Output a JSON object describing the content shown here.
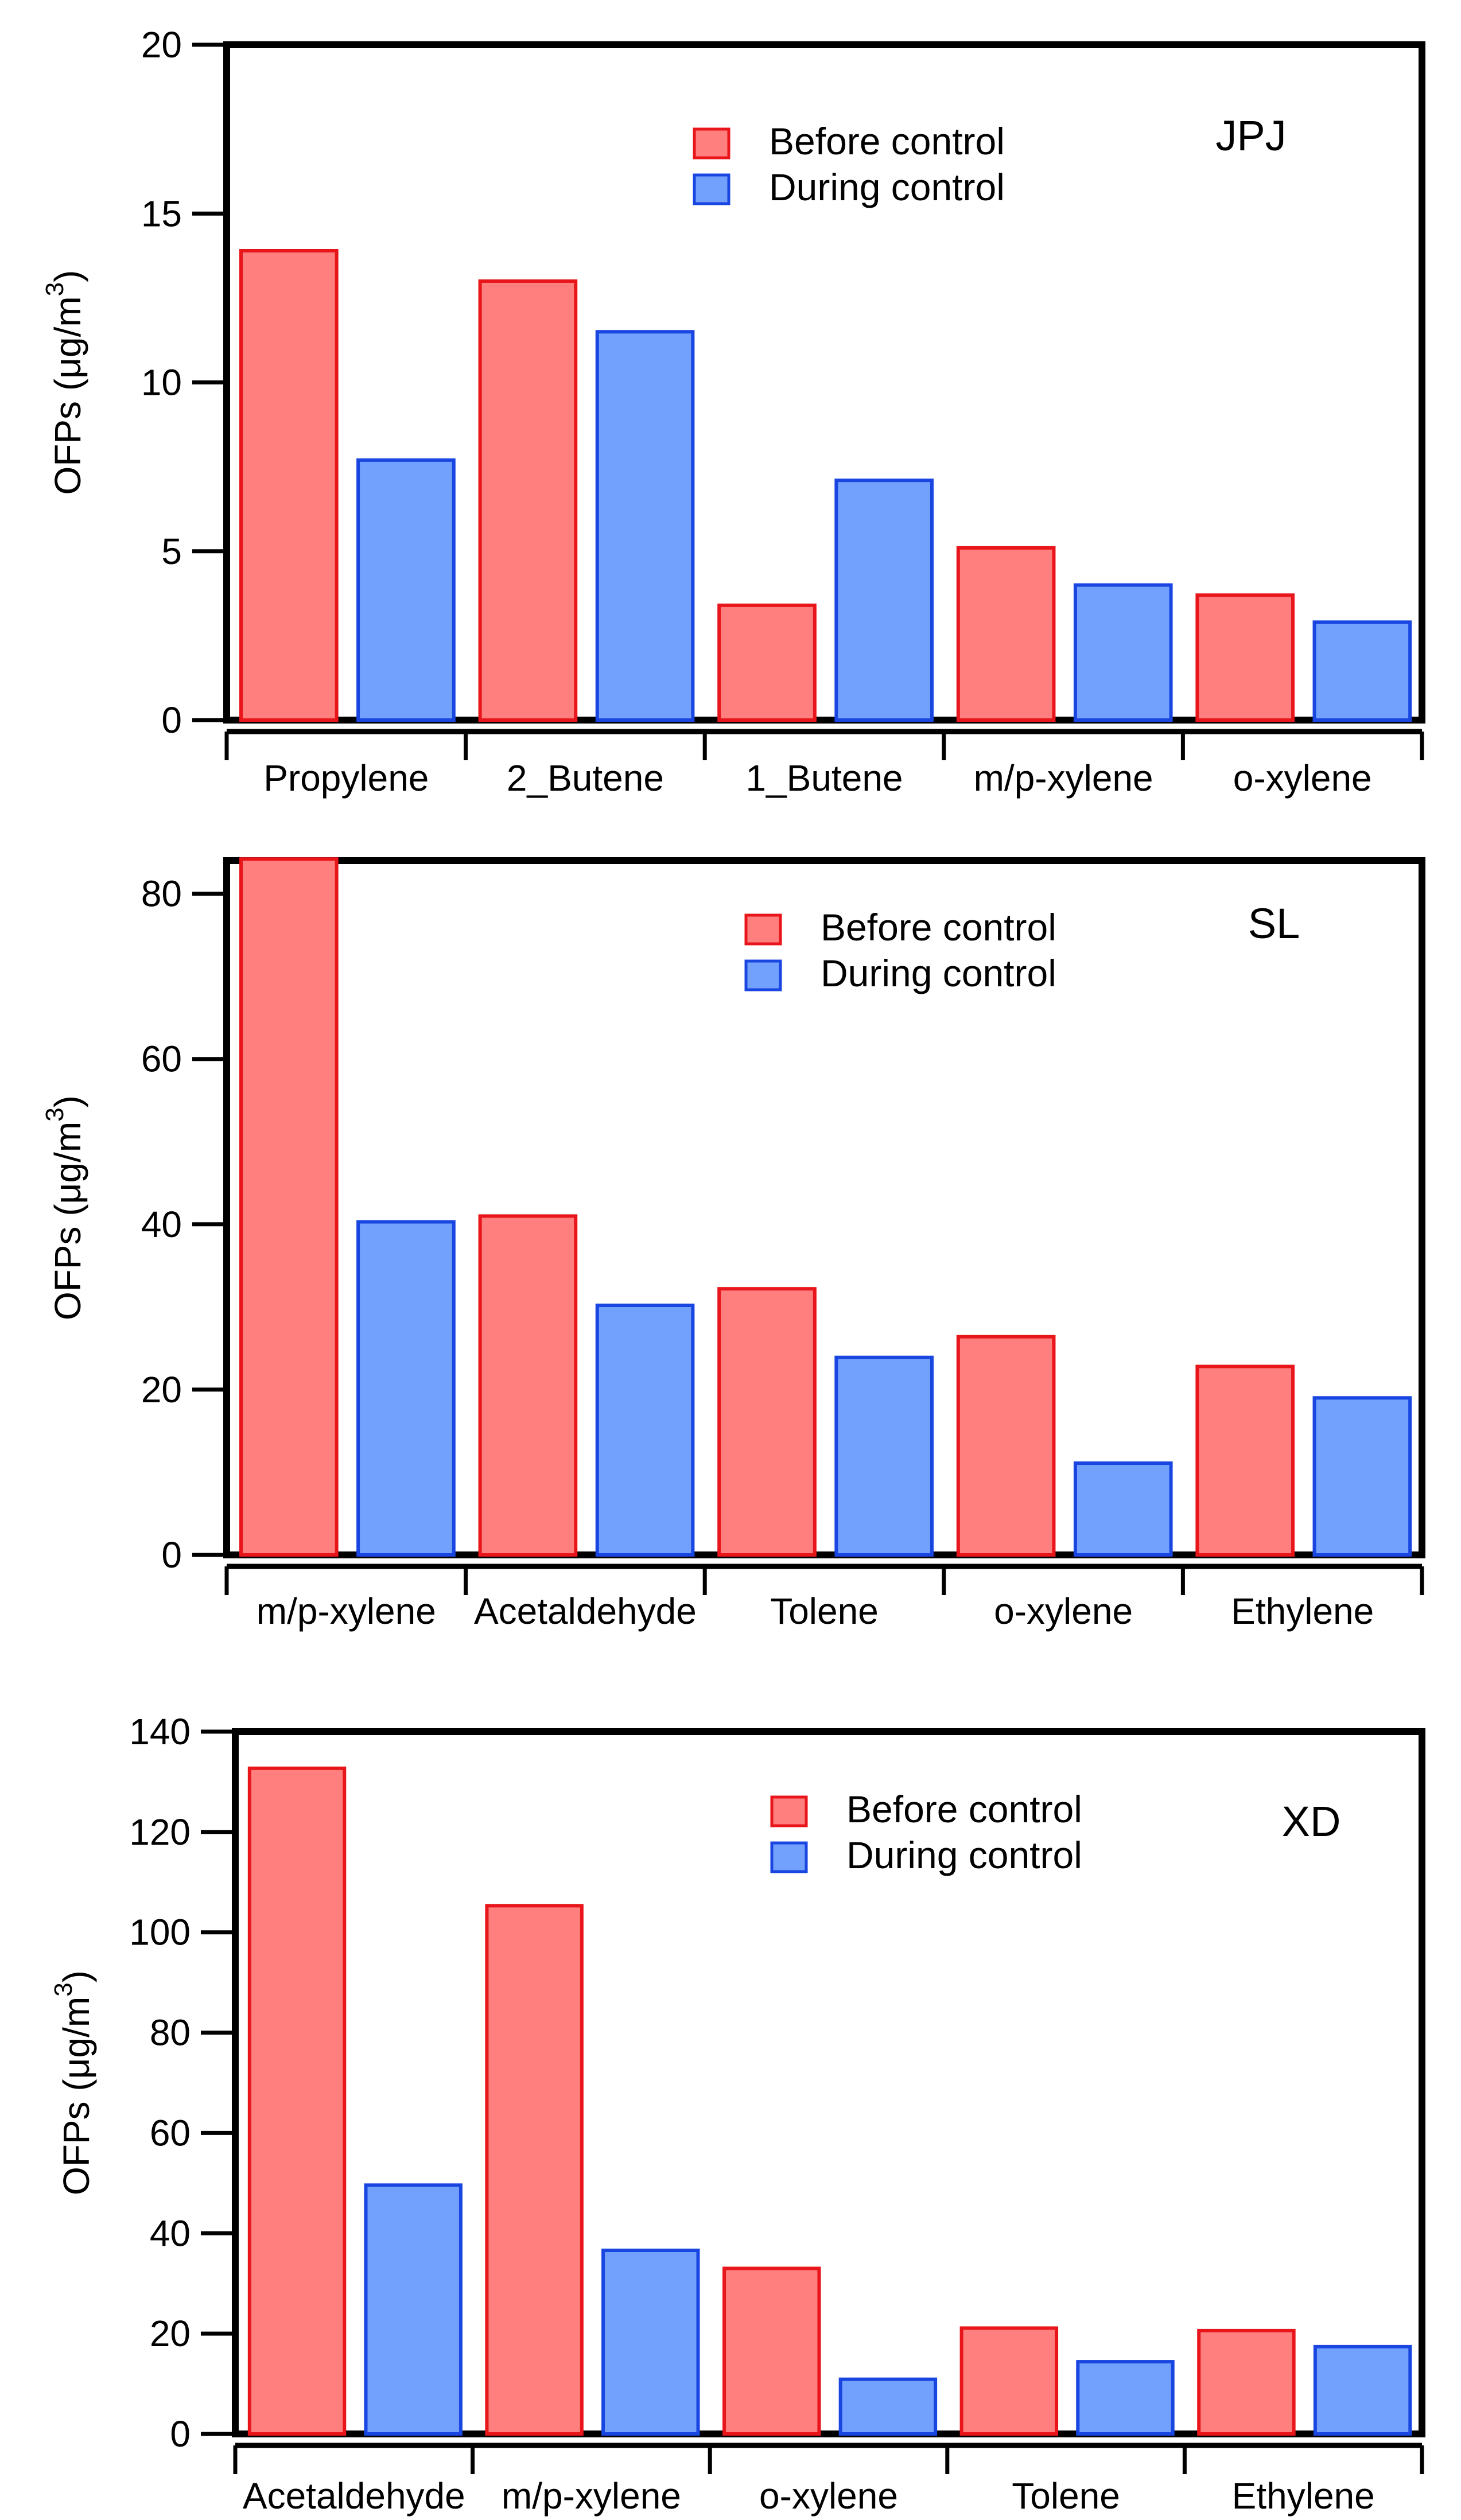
{
  "colors": {
    "before_fill": "#ff7f7f",
    "before_stroke": "#e8151b",
    "during_fill": "#72a1fd",
    "during_stroke": "#1945e0"
  },
  "chart_data": [
    {
      "type": "bar",
      "title": "JPJ",
      "ylabel": "OFPs (μg/m",
      "ylabel_sup": "3",
      "ylabel_close": ")",
      "ylim": [
        0,
        20
      ],
      "yticks": [
        0,
        5,
        10,
        15,
        20
      ],
      "categories": [
        "Propylene",
        "2_Butene",
        "1_Butene",
        "m/p-xylene",
        "o-xylene"
      ],
      "series": [
        {
          "name": "Before control",
          "values": [
            13.9,
            13.0,
            3.4,
            5.1,
            3.7
          ]
        },
        {
          "name": "During control",
          "values": [
            7.7,
            11.5,
            7.1,
            4.0,
            2.9
          ]
        }
      ],
      "legend": "top-center"
    },
    {
      "type": "bar",
      "title": "SL",
      "ylabel": "OFPs (μg/m",
      "ylabel_sup": "3",
      "ylabel_close": ")",
      "ylim": [
        0,
        84
      ],
      "yticks": [
        0,
        20,
        40,
        60,
        80
      ],
      "categories": [
        "m/p-xylene",
        "Acetaldehyde",
        "Tolene",
        "o-xylene",
        "Ethylene"
      ],
      "series": [
        {
          "name": "Before control",
          "values": [
            84.2,
            41.0,
            32.2,
            26.4,
            22.8
          ]
        },
        {
          "name": "During control",
          "values": [
            40.3,
            30.2,
            23.9,
            11.1,
            19.0
          ]
        }
      ],
      "legend": "top-center"
    },
    {
      "type": "bar",
      "title": "XD",
      "ylabel": "OFPs (μg/m",
      "ylabel_sup": "3",
      "ylabel_close": ")",
      "ylim": [
        0,
        140
      ],
      "yticks": [
        0,
        20,
        40,
        60,
        80,
        100,
        120,
        140
      ],
      "categories": [
        "Acetaldehyde",
        "m/p-xylene",
        "o-xylene",
        "Tolene",
        "Ethylene"
      ],
      "series": [
        {
          "name": "Before control",
          "values": [
            132.7,
            105.3,
            33.0,
            21.1,
            20.6
          ]
        },
        {
          "name": "During control",
          "values": [
            49.6,
            36.6,
            10.9,
            14.4,
            17.4
          ]
        }
      ],
      "legend": "top-center"
    }
  ]
}
